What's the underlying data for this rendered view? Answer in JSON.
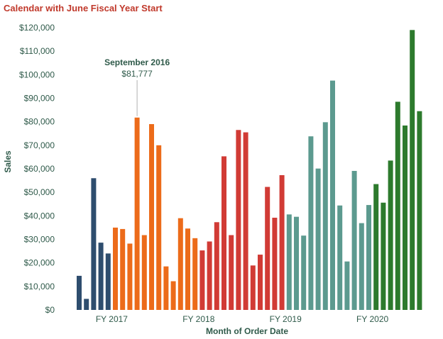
{
  "chart_data": {
    "type": "bar",
    "title": "Calendar with June Fiscal Year Start",
    "xlabel": "Month of Order Date",
    "ylabel": "Sales",
    "ylim": [
      0,
      120000
    ],
    "y_ticks": [
      0,
      10000,
      20000,
      30000,
      40000,
      50000,
      60000,
      70000,
      80000,
      90000,
      100000,
      110000,
      120000
    ],
    "y_tick_labels": [
      "$0",
      "$10,000",
      "$20,000",
      "$30,000",
      "$40,000",
      "$50,000",
      "$60,000",
      "$70,000",
      "$80,000",
      "$90,000",
      "$100,000",
      "$110,000",
      "$120,000"
    ],
    "grid": false,
    "fiscal_year_labels": [
      {
        "label": "FY 2017",
        "first_bar": 5
      },
      {
        "label": "FY 2018",
        "first_bar": 17
      },
      {
        "label": "FY 2019",
        "first_bar": 29
      },
      {
        "label": "FY 2020",
        "first_bar": 41
      }
    ],
    "series": [
      {
        "color": "#2e4d6e",
        "start": 0,
        "values": [
          14500,
          4700,
          56000,
          28600,
          24000
        ]
      },
      {
        "color": "#ec6b1a",
        "start": 5,
        "values": [
          35000,
          34400,
          28200,
          81777,
          31800,
          79000,
          70000,
          18500,
          12200,
          39000,
          34600,
          30500
        ]
      },
      {
        "color": "#d13b35",
        "start": 17,
        "values": [
          25300,
          29100,
          37300,
          65300,
          31800,
          76500,
          75500,
          18900,
          23500,
          52300,
          39200,
          57300
        ]
      },
      {
        "color": "#5c9a8f",
        "start": 29,
        "values": [
          40600,
          39600,
          31600,
          73800,
          60100,
          79800,
          97500,
          44400,
          20600,
          59100,
          36900,
          44600
        ]
      },
      {
        "color": "#2d7a2d",
        "start": 41,
        "values": [
          53500,
          45600,
          63500,
          88500,
          78400,
          119000,
          84500
        ]
      }
    ],
    "annotation": {
      "bar_index": 8,
      "line1": "September 2016",
      "line2": "$81,777"
    }
  }
}
